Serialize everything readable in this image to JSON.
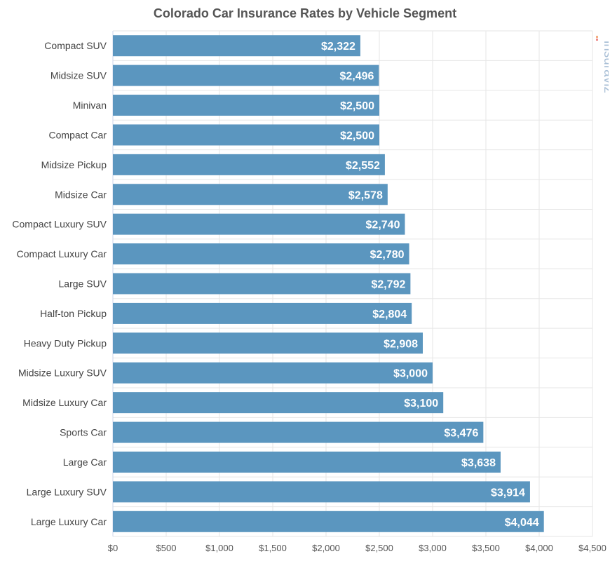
{
  "chart_data": {
    "type": "bar",
    "orientation": "horizontal",
    "title": "Colorado Car Insurance Rates by Vehicle Segment",
    "categories": [
      "Compact SUV",
      "Midsize SUV",
      "Minivan",
      "Compact Car",
      "Midsize Pickup",
      "Midsize Car",
      "Compact Luxury SUV",
      "Compact Luxury Car",
      "Large SUV",
      "Half-ton Pickup",
      "Heavy Duty Pickup",
      "Midsize Luxury SUV",
      "Midsize Luxury Car",
      "Sports Car",
      "Large Car",
      "Large Luxury SUV",
      "Large Luxury Car"
    ],
    "values": [
      2322,
      2496,
      2500,
      2500,
      2552,
      2578,
      2740,
      2780,
      2792,
      2804,
      2908,
      3000,
      3100,
      3476,
      3638,
      3914,
      4044
    ],
    "data_labels": [
      "$2,322",
      "$2,496",
      "$2,500",
      "$2,500",
      "$2,552",
      "$2,578",
      "$2,740",
      "$2,780",
      "$2,792",
      "$2,804",
      "$2,908",
      "$3,000",
      "$3,100",
      "$3,476",
      "$3,638",
      "$3,914",
      "$4,044"
    ],
    "xlim": [
      0,
      4500
    ],
    "x_ticks": [
      0,
      500,
      1000,
      1500,
      2000,
      2500,
      3000,
      3500,
      4000,
      4500
    ],
    "x_tick_labels": [
      "$0",
      "$500",
      "$1,000",
      "$1,500",
      "$2,000",
      "$2,500",
      "$3,000",
      "$3,500",
      "$4,000",
      "$4,500"
    ],
    "xlabel": "",
    "ylabel": "",
    "grid": true,
    "bar_color": "#5b96bf"
  },
  "watermark": "insuraviz"
}
